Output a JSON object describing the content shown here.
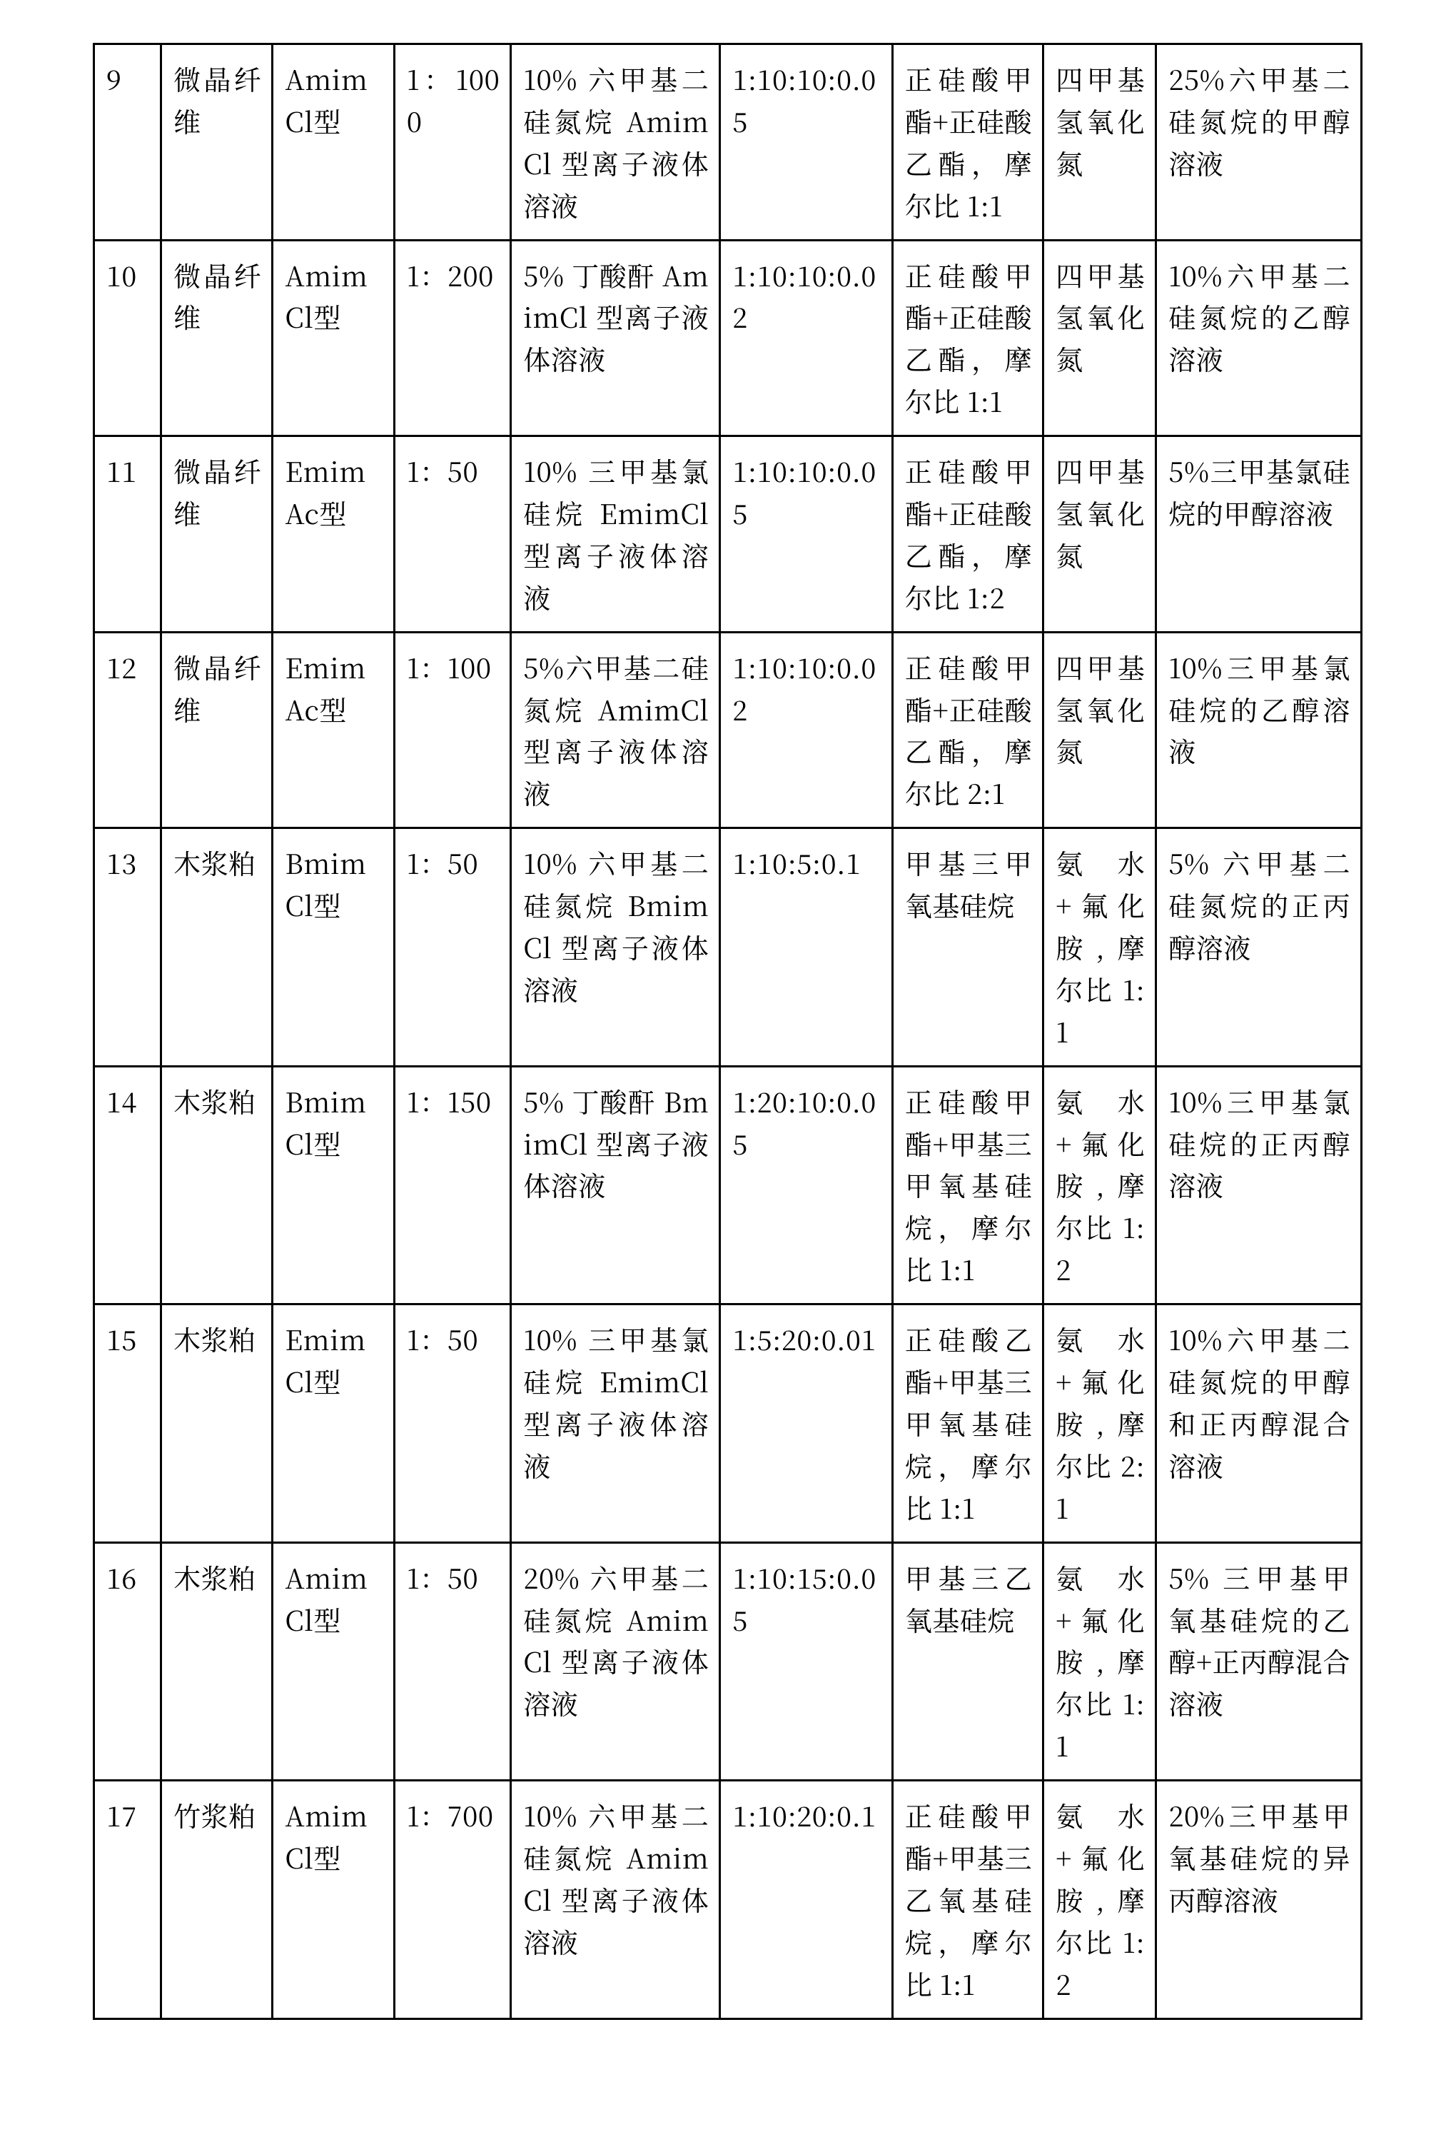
{
  "table": {
    "rows": [
      {
        "idx": "9",
        "material": "微晶纤维",
        "il_type": "AmimCl型",
        "ratio1": "1：1000",
        "solution": "10% 六甲基二硅氮烷 AmimCl 型离子液体溶液",
        "ratio2": "1:10:10:0.05",
        "silicate": "正硅酸甲酯+正硅酸乙酯，摩尔比 1:1",
        "base": "四甲基氢氧化氮",
        "mod": "25%六甲基二硅氮烷的甲醇溶液"
      },
      {
        "idx": "10",
        "material": "微晶纤维",
        "il_type": "AmimCl型",
        "ratio1": "1：200",
        "solution": "5% 丁酸酐 AmimCl 型离子液体溶液",
        "ratio2": "1:10:10:0.02",
        "silicate": "正硅酸甲酯+正硅酸乙酯，摩尔比 1:1",
        "base": "四甲基氢氧化氮",
        "mod": "10%六甲基二硅氮烷的乙醇溶液"
      },
      {
        "idx": "11",
        "material": "微晶纤维",
        "il_type": "EmimAc型",
        "ratio1": "1：50",
        "solution": "10% 三甲基氯硅烷 EmimCl 型离子液体溶液",
        "ratio2": "1:10:10:0.05",
        "silicate": "正硅酸甲酯+正硅酸乙酯，摩尔比 1:2",
        "base": "四甲基氢氧化氮",
        "mod": "5%三甲基氯硅烷的甲醇溶液"
      },
      {
        "idx": "12",
        "material": "微晶纤维",
        "il_type": "EmimAc型",
        "ratio1": "1：100",
        "solution": "5%六甲基二硅氮烷 AmimCl 型离子液体溶液",
        "ratio2": "1:10:10:0.02",
        "silicate": "正硅酸甲酯+正硅酸乙酯，摩尔比 2:1",
        "base": "四甲基氢氧化氮",
        "mod": "10%三甲基氯硅烷的乙醇溶液"
      },
      {
        "idx": "13",
        "material": "木浆粕",
        "il_type": "BmimCl型",
        "ratio1": "1：50",
        "solution": "10% 六甲基二硅氮烷 BmimCl 型离子液体溶液",
        "ratio2": "1:10:5:0.1",
        "silicate": "甲基三甲氧基硅烷",
        "base": "氨水+氟化胺,摩尔比 1:1",
        "mod": "5% 六甲基二硅氮烷的正丙醇溶液"
      },
      {
        "idx": "14",
        "material": "木浆粕",
        "il_type": "BmimCl型",
        "ratio1": "1：150",
        "solution": "5% 丁酸酐 BmimCl 型离子液体溶液",
        "ratio2": "1:20:10:0.05",
        "silicate": "正硅酸甲酯+甲基三甲氧基硅烷，摩尔比 1:1",
        "base": "氨水+氟化胺,摩尔比 1:2",
        "mod": "10%三甲基氯硅烷的正丙醇溶液"
      },
      {
        "idx": "15",
        "material": "木浆粕",
        "il_type": "EmimCl型",
        "ratio1": "1：50",
        "solution": "10% 三甲基氯硅烷 EmimCl 型离子液体溶液",
        "ratio2": "1:5:20:0.01",
        "silicate": "正硅酸乙酯+甲基三甲氧基硅烷，摩尔比 1:1",
        "base": "氨水+氟化胺,摩尔比 2:1",
        "mod": "10%六甲基二硅氮烷的甲醇和正丙醇混合溶液"
      },
      {
        "idx": "16",
        "material": "木浆粕",
        "il_type": "AmimCl型",
        "ratio1": "1：50",
        "solution": "20% 六甲基二硅氮烷 AmimCl 型离子液体溶液",
        "ratio2": "1:10:15:0.05",
        "silicate": "甲基三乙氧基硅烷",
        "base": "氨水+氟化胺,摩尔比 1:1",
        "mod": "5% 三甲基甲氧基硅烷的乙醇+正丙醇混合溶液"
      },
      {
        "idx": "17",
        "material": "竹浆粕",
        "il_type": "AmimCl型",
        "ratio1": "1：700",
        "solution": "10% 六甲基二硅氮烷 AmimCl 型离子液体溶液",
        "ratio2": "1:10:20:0.1",
        "silicate": "正硅酸甲酯+甲基三乙氧基硅烷，摩尔比 1:1",
        "base": "氨水+氟化胺,摩尔比 1:2",
        "mod": "20%三甲基甲氧基硅烷的异丙醇溶液"
      }
    ]
  }
}
